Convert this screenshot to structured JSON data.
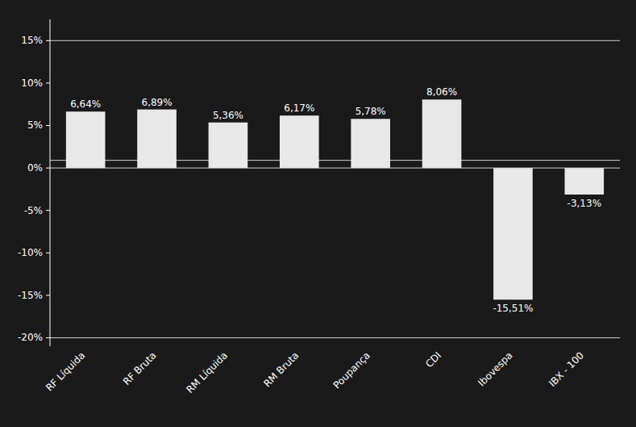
{
  "chart_data": {
    "type": "bar",
    "categories": [
      "RF Líquida",
      "RF Bruta",
      "RM Líquida",
      "RM Bruta",
      "Poupança",
      "CDI",
      "Ibovespa",
      "IBX - 100"
    ],
    "values": [
      6.64,
      6.89,
      5.36,
      6.17,
      5.78,
      8.06,
      -15.51,
      -3.13
    ],
    "value_labels": [
      "6,64%",
      "6,89%",
      "5,36%",
      "6,17%",
      "5,78%",
      "8,06%",
      "-15,51%",
      "-3,13%"
    ],
    "data_labels": true,
    "color": "#e8e8e8",
    "ylim": [
      -21,
      17.5
    ],
    "yticks": [
      {
        "value": -20,
        "label": "-20%"
      },
      {
        "value": -15,
        "label": "-15%"
      },
      {
        "value": -10,
        "label": "-10%"
      },
      {
        "value": -5,
        "label": "-5%"
      },
      {
        "value": 0,
        "label": "0%"
      },
      {
        "value": 5,
        "label": "5%"
      },
      {
        "value": 10,
        "label": "10%"
      },
      {
        "value": 15,
        "label": "15%"
      }
    ],
    "hlines": [
      15,
      0.9,
      0,
      -20
    ],
    "grid": false
  }
}
